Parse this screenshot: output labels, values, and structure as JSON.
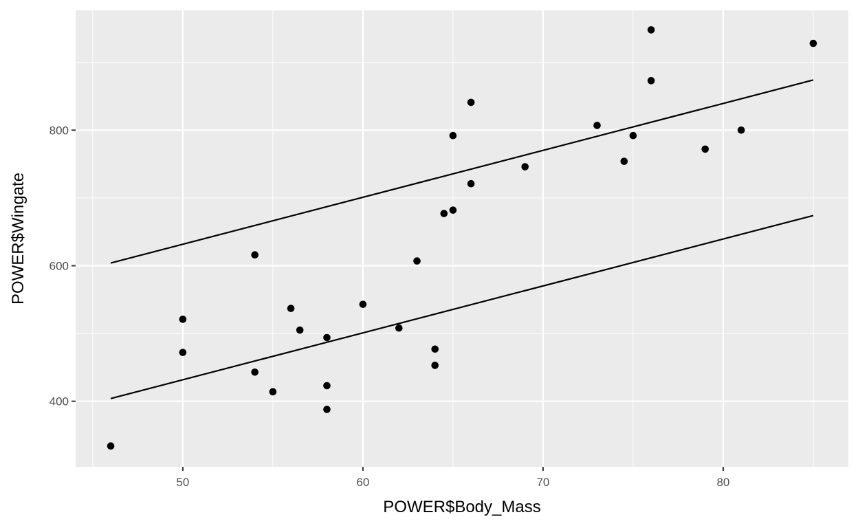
{
  "chart_data": {
    "type": "scatter",
    "title": "",
    "xlabel": "POWER$Body_Mass",
    "ylabel": "POWER$Wingate",
    "xlim": [
      44.05,
      86.95
    ],
    "ylim": [
      303.3,
      976.8
    ],
    "x_ticks": [
      50,
      60,
      70,
      80
    ],
    "y_ticks": [
      400,
      600,
      800
    ],
    "x_minor_ticks": [
      45,
      55,
      65,
      75,
      85
    ],
    "y_minor_ticks": [
      300,
      500,
      700,
      900
    ],
    "grid": true,
    "legend": "none",
    "colors": {
      "panel": "#ebebeb",
      "grid": "#ffffff",
      "points": "#000000",
      "lines": "#000000",
      "ticks": "#4d4d4d"
    },
    "points": [
      {
        "x": 46,
        "y": 334
      },
      {
        "x": 50,
        "y": 521
      },
      {
        "x": 50,
        "y": 472
      },
      {
        "x": 54,
        "y": 616
      },
      {
        "x": 54,
        "y": 443
      },
      {
        "x": 55,
        "y": 414
      },
      {
        "x": 56,
        "y": 537
      },
      {
        "x": 56.5,
        "y": 505
      },
      {
        "x": 58,
        "y": 494
      },
      {
        "x": 58,
        "y": 423
      },
      {
        "x": 58,
        "y": 388
      },
      {
        "x": 60,
        "y": 543
      },
      {
        "x": 62,
        "y": 508
      },
      {
        "x": 63,
        "y": 607
      },
      {
        "x": 64,
        "y": 477
      },
      {
        "x": 64,
        "y": 453
      },
      {
        "x": 64.5,
        "y": 677
      },
      {
        "x": 65,
        "y": 682
      },
      {
        "x": 65,
        "y": 792
      },
      {
        "x": 66,
        "y": 841
      },
      {
        "x": 66,
        "y": 721
      },
      {
        "x": 69,
        "y": 746
      },
      {
        "x": 73,
        "y": 807
      },
      {
        "x": 74.5,
        "y": 754
      },
      {
        "x": 75,
        "y": 792
      },
      {
        "x": 76,
        "y": 948
      },
      {
        "x": 76,
        "y": 873
      },
      {
        "x": 79,
        "y": 772
      },
      {
        "x": 81,
        "y": 800
      },
      {
        "x": 85,
        "y": 928
      }
    ],
    "lines": [
      {
        "x": [
          46,
          85
        ],
        "y": [
          604,
          874
        ]
      },
      {
        "x": [
          46,
          85
        ],
        "y": [
          404,
          674
        ]
      }
    ]
  }
}
